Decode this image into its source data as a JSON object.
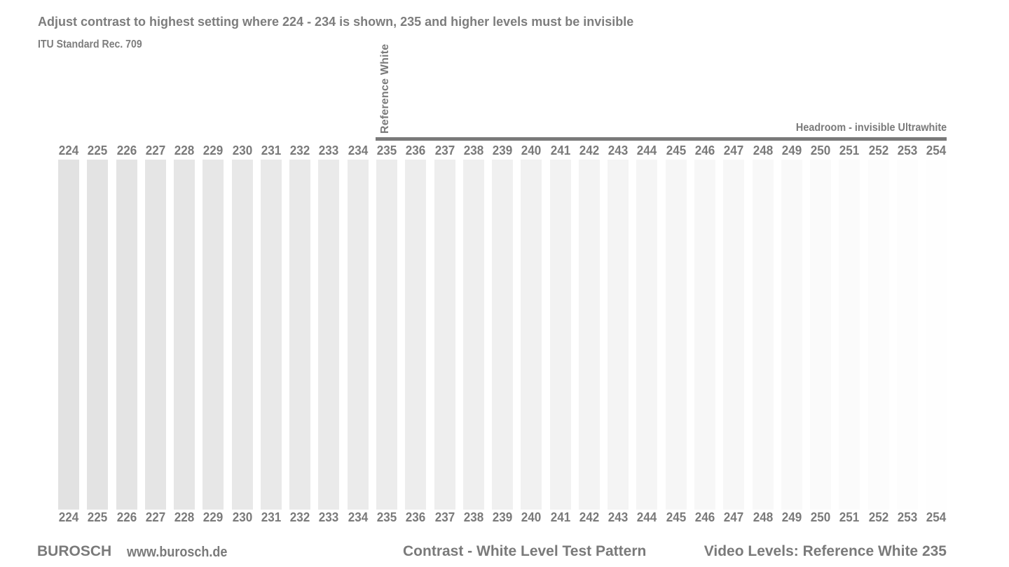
{
  "header": {
    "instruction": "Adjust contrast to highest setting where 224 - 234 is shown, 235 and higher levels must be invisible",
    "standard": "ITU Standard Rec. 709"
  },
  "markers": {
    "reference_white": "Reference White",
    "headroom": "Headroom - invisible Ultrawhite"
  },
  "levels": [
    224,
    225,
    226,
    227,
    228,
    229,
    230,
    231,
    232,
    233,
    234,
    235,
    236,
    237,
    238,
    239,
    240,
    241,
    242,
    243,
    244,
    245,
    246,
    247,
    248,
    249,
    250,
    251,
    252,
    253,
    254
  ],
  "level_labels": [
    "224",
    "225",
    "226",
    "227",
    "228",
    "229",
    "230",
    "231",
    "232",
    "233",
    "234",
    "235",
    "236",
    "237",
    "238",
    "239",
    "240",
    "241",
    "242",
    "243",
    "244",
    "245",
    "246",
    "247",
    "248",
    "249",
    "250",
    "251",
    "252",
    "253",
    "254"
  ],
  "colors": {
    "background": "#ffffff",
    "text": "#7a7a7a",
    "marker_line": "#7a7a7a"
  },
  "footer": {
    "brand": "BUROSCH",
    "url": "www.burosch.de",
    "title": "Contrast - White Level Test Pattern",
    "levels_info": "Video Levels: Reference White 235"
  }
}
